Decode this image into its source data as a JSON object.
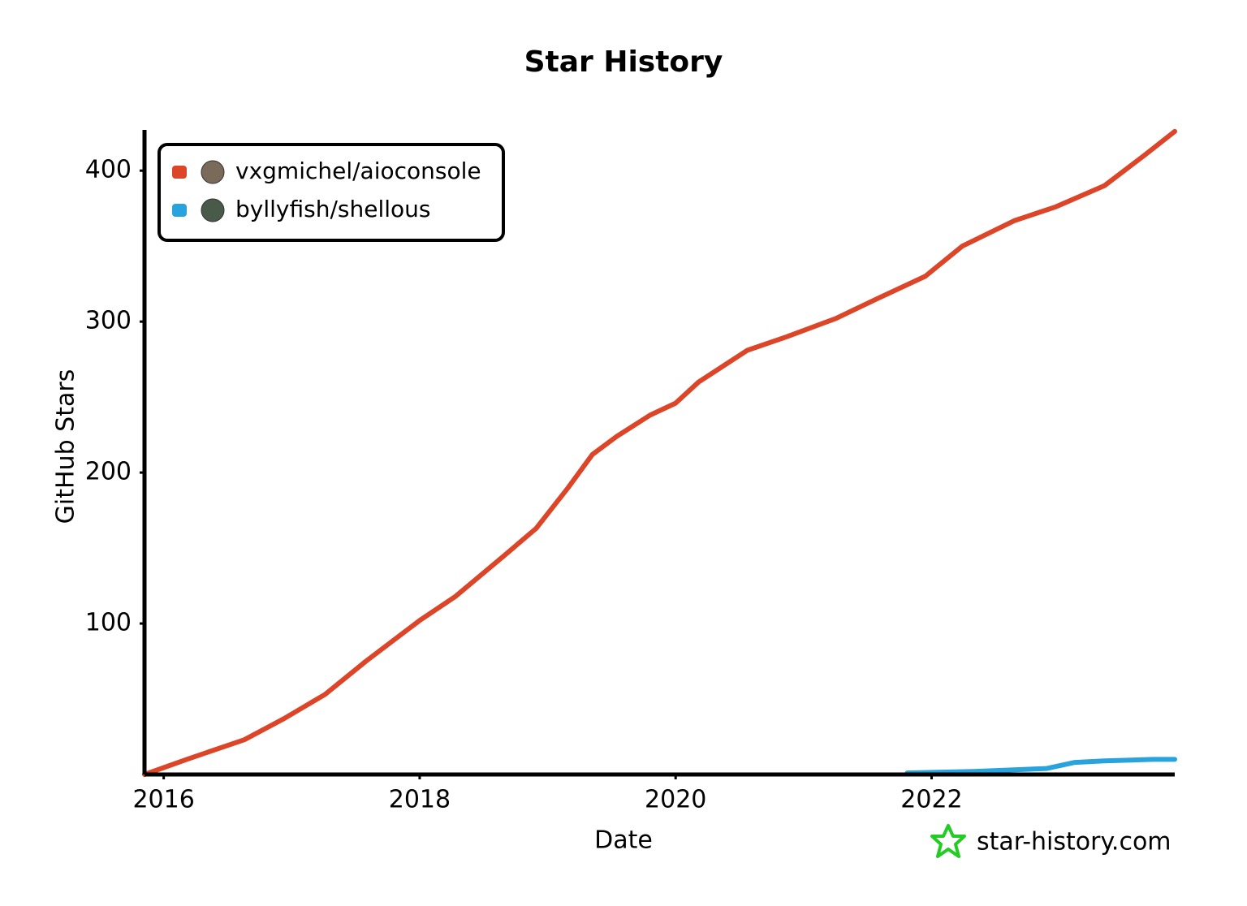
{
  "chart_data": {
    "type": "line",
    "title": "Star History",
    "x_label": "Date",
    "y_label": "GitHub Stars",
    "xlim": [
      2015.85,
      2023.9
    ],
    "xticks": [
      2016,
      2018,
      2020,
      2022
    ],
    "ylim": [
      0,
      427
    ],
    "yticks": [
      100,
      200,
      300,
      400
    ],
    "legend": "upper left",
    "watermark": "star-history.com",
    "series": [
      {
        "name": "vxgmichel/aioconsole",
        "color": "#dd4528",
        "x": [
          2015.85,
          2016.18,
          2016.63,
          2016.94,
          2017.26,
          2017.58,
          2018.0,
          2018.28,
          2018.66,
          2018.91,
          2019.16,
          2019.35,
          2019.54,
          2019.8,
          2020.0,
          2020.18,
          2020.56,
          2020.87,
          2021.25,
          2021.57,
          2021.95,
          2022.24,
          2022.65,
          2022.97,
          2023.35,
          2023.66,
          2023.9
        ],
        "values": [
          0,
          10,
          23,
          37,
          53,
          75,
          102,
          118,
          145,
          163,
          190,
          212,
          224,
          238,
          246,
          260,
          281,
          290,
          302,
          315,
          330,
          350,
          367,
          376,
          390,
          410,
          426
        ]
      },
      {
        "name": "byllyfish/shellous",
        "color": "#28a3dd",
        "x": [
          2021.81,
          2022.33,
          2022.9,
          2023.12,
          2023.35,
          2023.73,
          2023.9
        ],
        "values": [
          1,
          2,
          4,
          8,
          9,
          10,
          10
        ]
      }
    ]
  }
}
